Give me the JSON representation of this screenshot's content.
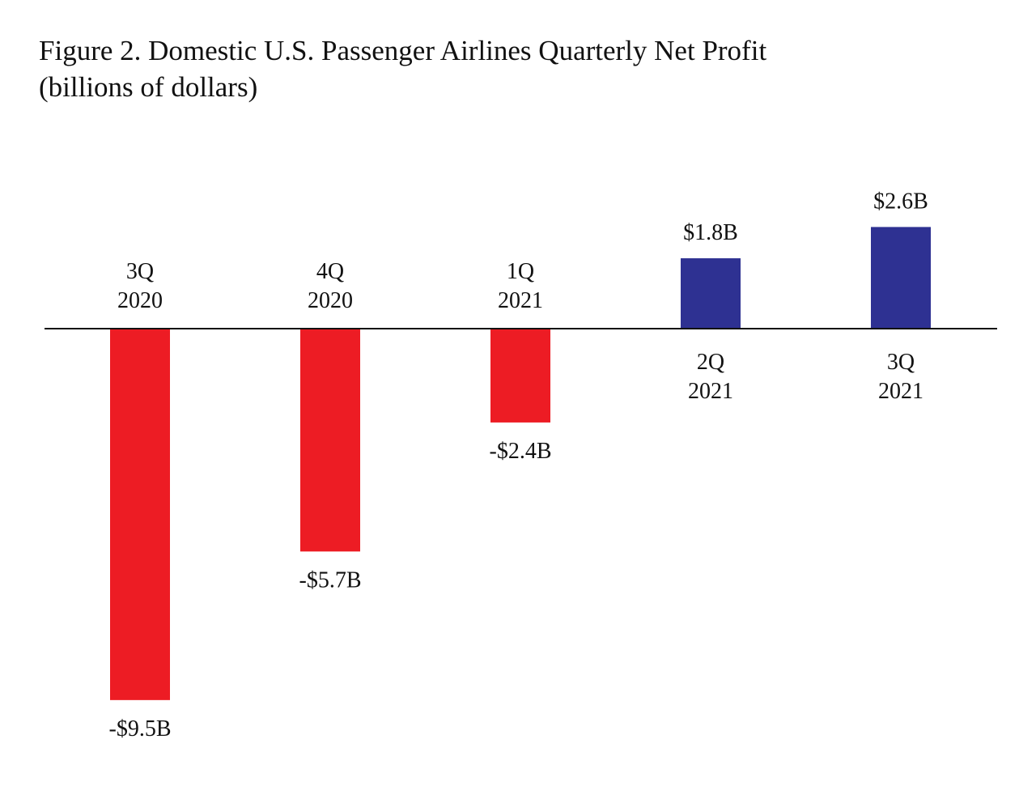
{
  "title": "Figure 2. Domestic U.S. Passenger Airlines Quarterly Net Profit",
  "subtitle": "(billions of dollars)",
  "chart_data": {
    "type": "bar",
    "title": "Figure 2. Domestic U.S. Passenger Airlines Quarterly Net Profit",
    "subtitle": "(billions of dollars)",
    "categories": [
      [
        "3Q",
        "2020"
      ],
      [
        "4Q",
        "2020"
      ],
      [
        "1Q",
        "2021"
      ],
      [
        "2Q",
        "2021"
      ],
      [
        "3Q",
        "2021"
      ]
    ],
    "values": [
      -9.5,
      -5.7,
      -2.4,
      1.8,
      2.6
    ],
    "data_labels": [
      "-$9.5B",
      "-$5.7B",
      "-$2.4B",
      "$1.8B",
      "$2.6B"
    ],
    "units": "billions of dollars",
    "ylim": [
      -9.5,
      2.6
    ],
    "grid": false,
    "legend": "none",
    "colors": {
      "negative": "#ed1c24",
      "positive": "#2e3192",
      "baseline": "#111111"
    }
  }
}
